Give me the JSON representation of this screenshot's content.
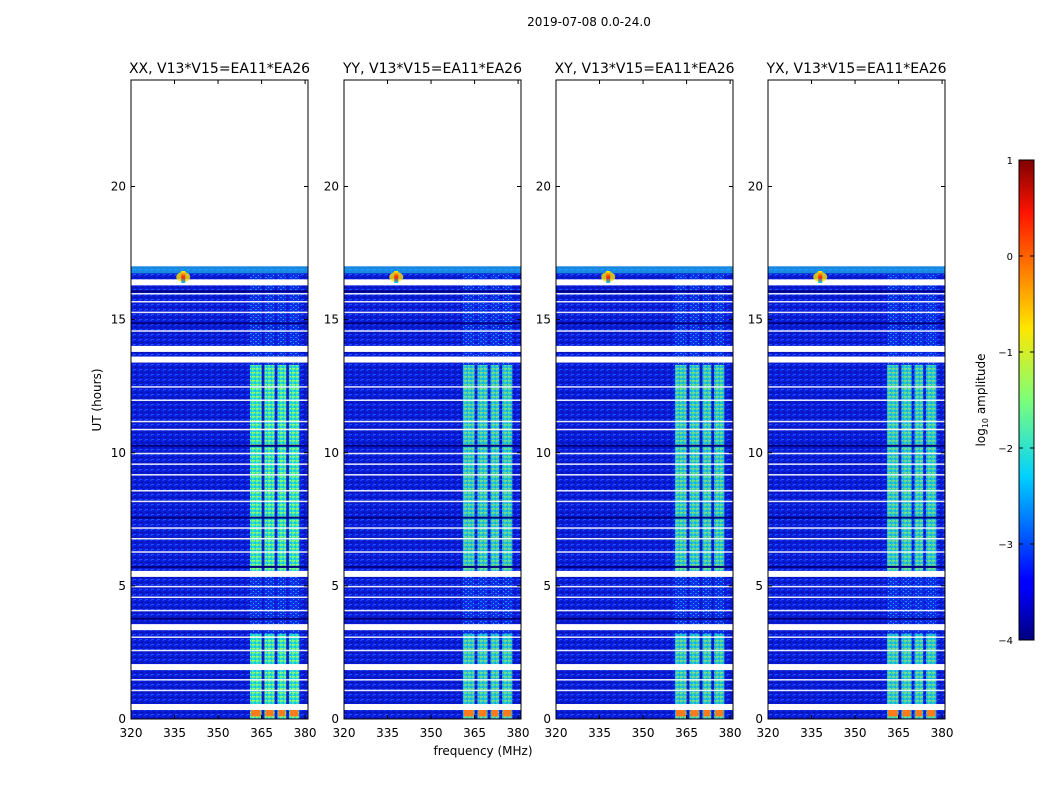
{
  "figure": {
    "suptitle": "2019-07-08 0.0-24.0",
    "colors": {
      "frame": "#000000",
      "empty": "#ffffff"
    }
  },
  "chart_data": {
    "type": "heatmap",
    "title": "2019-07-08 0.0-24.0",
    "xlabel": "frequency (MHz)",
    "ylabel": "UT (hours)",
    "xlim": [
      320,
      381
    ],
    "ylim": [
      0,
      24
    ],
    "xticks": [
      320,
      335,
      350,
      365,
      380
    ],
    "yticks": [
      0,
      5,
      10,
      15,
      20
    ],
    "data_extent_hours": [
      0,
      17
    ],
    "panels": [
      {
        "title": "XX, V13*V15=EA11*EA26"
      },
      {
        "title": "YY, V13*V15=EA11*EA26"
      },
      {
        "title": "XY, V13*V15=EA11*EA26"
      },
      {
        "title": "YX, V13*V15=EA11*EA26"
      }
    ],
    "features": {
      "rfi_band_mhz": [
        361,
        378
      ],
      "rfi_subbands_mhz": [
        [
          361,
          365
        ],
        [
          366,
          369.5
        ],
        [
          370.5,
          373.5
        ],
        [
          374.5,
          378
        ]
      ],
      "rfi_band_active_hours": [
        [
          0,
          3.2
        ],
        [
          5.5,
          13.3
        ]
      ],
      "bright_spot": {
        "freq_mhz": 338,
        "ut_hours": 16.6,
        "log10_amplitude": 0.8
      },
      "flagged_hours": [
        0.45,
        1.95,
        3.45,
        5.45,
        13.5,
        13.9,
        16.4
      ],
      "dark_rows_hours": [
        5.75,
        14.9,
        16.1,
        10.3,
        7.6,
        3.8
      ]
    },
    "colorbar": {
      "label": "log",
      "label_sub": "10",
      "label_suffix": " amplitude",
      "range": [
        -4,
        1
      ],
      "ticks": [
        "1",
        "0",
        "−1",
        "−2",
        "−3",
        "−4"
      ],
      "colormap": "jet"
    }
  }
}
